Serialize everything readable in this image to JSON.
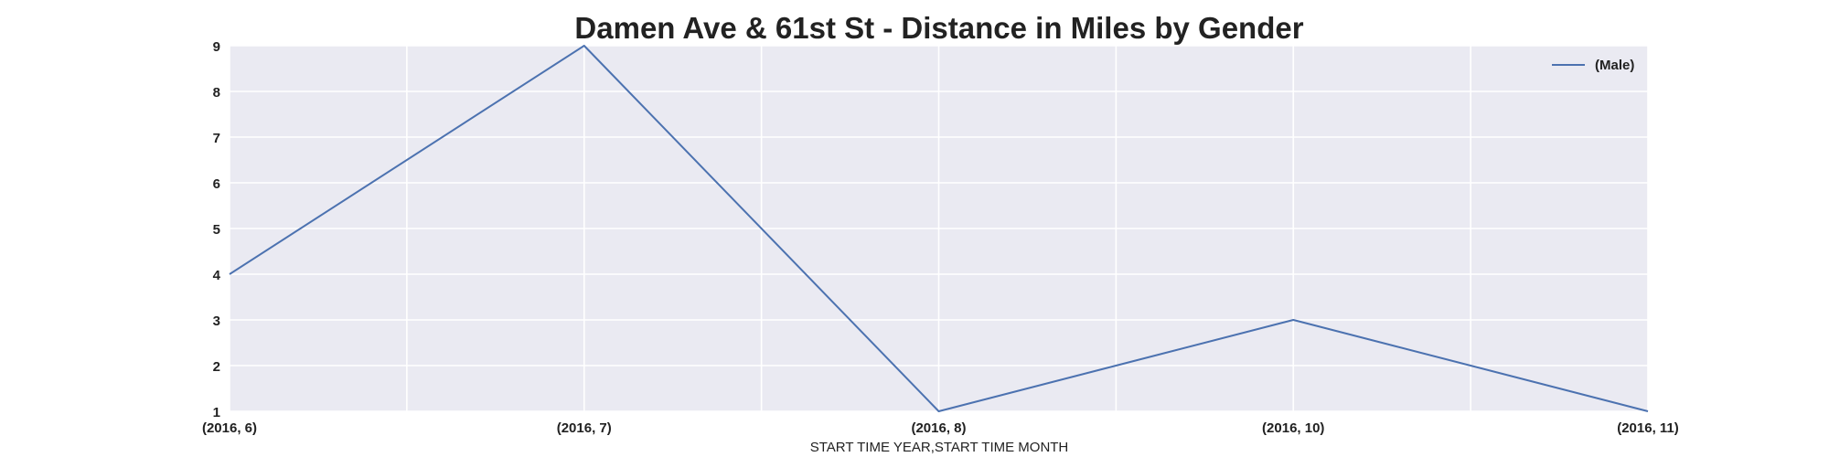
{
  "chart_data": {
    "type": "line",
    "title": "Damen Ave & 61st St - Distance in Miles by Gender",
    "xlabel": "START TIME YEAR,START TIME MONTH",
    "ylabel": "",
    "categories": [
      "(2016, 6)",
      "(2016, 7)",
      "(2016, 8)",
      "(2016, 10)",
      "(2016, 11)"
    ],
    "series": [
      {
        "name": "(Male)",
        "values": [
          4,
          9,
          1,
          3,
          1
        ],
        "color": "#4c72b0"
      }
    ],
    "ylim": [
      1,
      9
    ],
    "yticks": [
      "1",
      "2",
      "3",
      "4",
      "5",
      "6",
      "7",
      "8",
      "9"
    ],
    "grid": true,
    "legend": "top-right",
    "colors": {
      "plot_background": "#eaeaf2",
      "grid": "#ffffff"
    }
  }
}
